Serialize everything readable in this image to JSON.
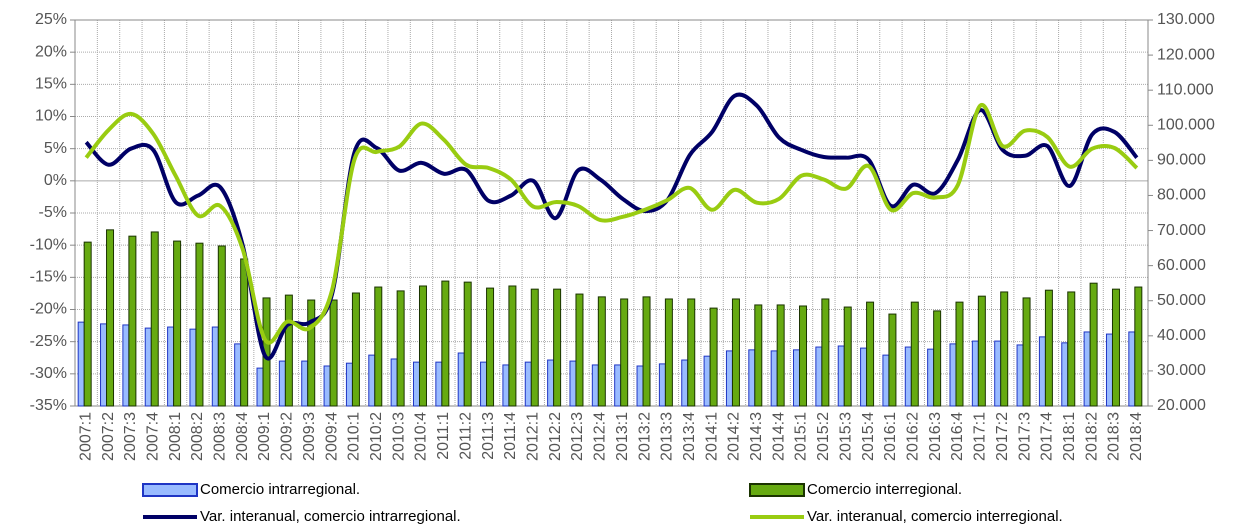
{
  "chart_data": {
    "type": "bar-line",
    "categories": [
      "2007:1",
      "2007:2",
      "2007:3",
      "2007:4",
      "2008:1",
      "2008:2",
      "2008:3",
      "2008:4",
      "2009:1",
      "2009:2",
      "2009:3",
      "2009:4",
      "2010:1",
      "2010:2",
      "2010:3",
      "2010:4",
      "2011:1",
      "2011:2",
      "2011:3",
      "2011:4",
      "2012:1",
      "2012:2",
      "2012:3",
      "2012:4",
      "2013:1",
      "2013:2",
      "2013:3",
      "2013:4",
      "2014:1",
      "2014:2",
      "2014:3",
      "2014:4",
      "2015:1",
      "2015:2",
      "2015:3",
      "2015:4",
      "2016:1",
      "2016:2",
      "2016:3",
      "2016:4",
      "2017:1",
      "2017:2",
      "2017:3",
      "2017:4",
      "2018:1",
      "2018:2",
      "2018:3",
      "2018:4"
    ],
    "series": [
      {
        "name": "Comercio intrarregional.",
        "type": "bar",
        "axis": "y2",
        "color": "#99bbff",
        "stroke": "#1f35c4",
        "values": [
          43900,
          43400,
          43100,
          42200,
          42500,
          41900,
          42500,
          37700,
          30800,
          32800,
          32800,
          31400,
          32200,
          34500,
          33400,
          32500,
          32500,
          35100,
          32500,
          31700,
          32500,
          33100,
          32800,
          31700,
          31700,
          31400,
          32000,
          33100,
          34200,
          35700,
          36000,
          35700,
          36000,
          36800,
          37100,
          36500,
          34500,
          36800,
          36200,
          37700,
          38500,
          38500,
          37400,
          39700,
          38000,
          41100,
          40500,
          41100
        ]
      },
      {
        "name": "Comercio interregional.",
        "type": "bar",
        "axis": "y2",
        "color": "#66aa11",
        "stroke": "#1a3300",
        "values": [
          66700,
          70200,
          68400,
          69600,
          67000,
          66400,
          65600,
          61900,
          50800,
          51600,
          50200,
          50200,
          52200,
          53900,
          52800,
          54200,
          55600,
          55300,
          53600,
          54200,
          53300,
          53300,
          51900,
          51100,
          50500,
          51100,
          50500,
          50500,
          47900,
          50500,
          48800,
          48800,
          48500,
          50500,
          48200,
          49600,
          46200,
          49600,
          47100,
          49600,
          51300,
          52500,
          50800,
          53000,
          52500,
          55000,
          53300,
          53900
        ]
      },
      {
        "name": "Var. interanual, comercio intrarregional.",
        "type": "line",
        "color": "#000066",
        "values": [
          6,
          2.5,
          5,
          4.8,
          -3.3,
          -2.3,
          -1,
          -10,
          -27.2,
          -22.4,
          -22,
          -17.6,
          4.4,
          5.1,
          1.6,
          2.8,
          1.1,
          1.7,
          -3.1,
          -2.3,
          0,
          -5.8,
          1.6,
          0.2,
          -2.8,
          -4.7,
          -3,
          4,
          7.6,
          13.2,
          11.7,
          6.7,
          4.8,
          3.7,
          3.6,
          3.3,
          -3.9,
          -0.6,
          -1.9,
          3.3,
          11,
          4.8,
          3.9,
          5.4,
          -0.8,
          7.2,
          7.6,
          3.6
        ]
      },
      {
        "name": "Var. interanual, comercio interregional.",
        "type": "line",
        "color": "#99cc11",
        "values": [
          3.6,
          7.9,
          10.4,
          7.3,
          0.8,
          -5.4,
          -3.9,
          -10.6,
          -24.7,
          -21.9,
          -22.9,
          -17,
          3.3,
          4.5,
          5.3,
          8.9,
          6.4,
          2.5,
          2,
          0.2,
          -4,
          -3.3,
          -3.9,
          -6.1,
          -5.6,
          -4.5,
          -3,
          -1.1,
          -4.5,
          -1.4,
          -3.4,
          -2.8,
          0.8,
          0.2,
          -1.2,
          2.3,
          -4.5,
          -1.9,
          -2.6,
          -0.6,
          11.7,
          5.4,
          7.8,
          6.8,
          2.2,
          5,
          5.1,
          2
        ]
      }
    ],
    "ylim": [
      -35,
      25
    ],
    "yticks": [
      {
        "value": -35,
        "label": "-35%"
      },
      {
        "value": -30,
        "label": "-30%"
      },
      {
        "value": -25,
        "label": "-25%"
      },
      {
        "value": -20,
        "label": "-20%"
      },
      {
        "value": -15,
        "label": "-15%"
      },
      {
        "value": -10,
        "label": "-10%"
      },
      {
        "value": -5,
        "label": "-5%"
      },
      {
        "value": 0,
        "label": "0%"
      },
      {
        "value": 5,
        "label": "5%"
      },
      {
        "value": 10,
        "label": "10%"
      },
      {
        "value": 15,
        "label": "15%"
      },
      {
        "value": 20,
        "label": "20%"
      },
      {
        "value": 25,
        "label": "25%"
      }
    ],
    "y2lim": [
      20000,
      130000
    ],
    "y2ticks": [
      {
        "value": 20000,
        "label": "20.000"
      },
      {
        "value": 30000,
        "label": "30.000"
      },
      {
        "value": 40000,
        "label": "40.000"
      },
      {
        "value": 50000,
        "label": "50.000"
      },
      {
        "value": 60000,
        "label": "60.000"
      },
      {
        "value": 70000,
        "label": "70.000"
      },
      {
        "value": 80000,
        "label": "80.000"
      },
      {
        "value": 90000,
        "label": "90.000"
      },
      {
        "value": 100000,
        "label": "100.000"
      },
      {
        "value": 110000,
        "label": "110.000"
      },
      {
        "value": 120000,
        "label": "120.000"
      },
      {
        "value": 130000,
        "label": "130.000"
      }
    ],
    "grid": true,
    "legend": "bottom"
  }
}
